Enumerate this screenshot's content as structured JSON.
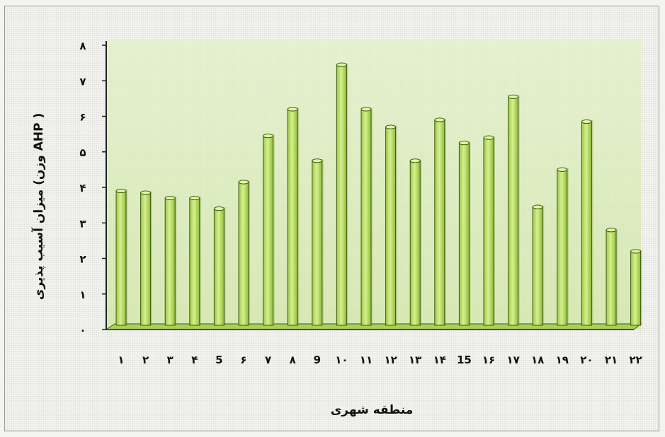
{
  "chart_data": {
    "type": "bar",
    "xlabel": "منطقه شهری",
    "ylabel": "میزان آسیب پذیری (وزن AHP )",
    "ylim": [
      0,
      8
    ],
    "yticks": [
      "۰",
      "۱",
      "۲",
      "۳",
      "۴",
      "۵",
      "۶",
      "۷",
      "۸"
    ],
    "grid": false,
    "categories": [
      "۱",
      "۲",
      "۳",
      "۴",
      "5",
      "۶",
      "۷",
      "۸",
      "9",
      "۱۰",
      "۱۱",
      "۱۲",
      "۱۳",
      "۱۴",
      "15",
      "۱۶",
      "۱۷",
      "۱۸",
      "۱۹",
      "۲۰",
      "۲۱",
      "۲۲"
    ],
    "values": [
      3.9,
      3.85,
      3.7,
      3.7,
      3.4,
      4.15,
      5.45,
      6.2,
      4.75,
      7.45,
      6.2,
      5.7,
      4.75,
      5.9,
      5.25,
      5.4,
      6.55,
      3.45,
      4.5,
      5.85,
      2.8,
      2.2
    ],
    "colors": {
      "bar": "#bfe06a",
      "bar_edge": "#3e5a0c",
      "floor": "#a9d05a",
      "wall": "#d6ecb0"
    }
  }
}
